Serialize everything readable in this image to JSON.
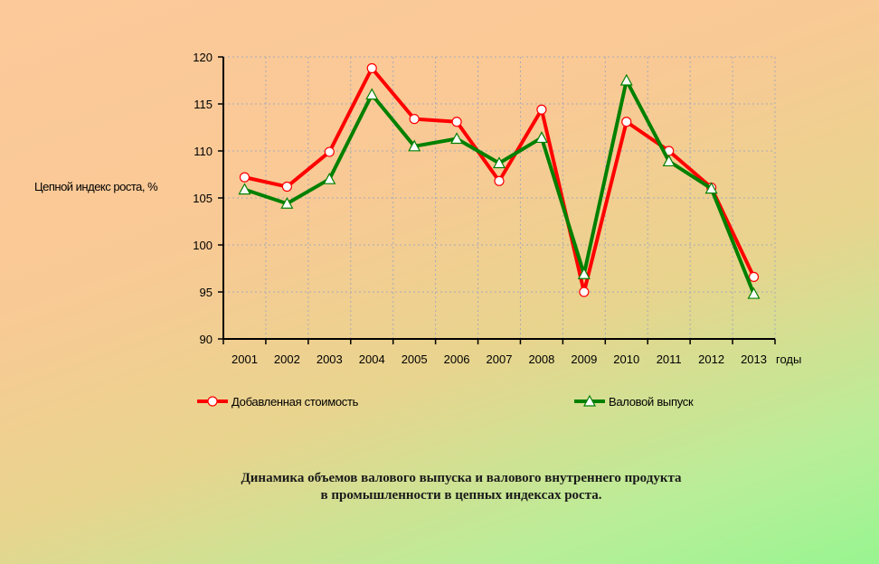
{
  "chart_data": {
    "type": "line",
    "title": "Динамика объемов валового выпуска и валового внутреннего продукта в промышленности в цепных индексах роста.",
    "caption_lines": [
      "Динамика объемов валового выпуска и валового внутреннего продукта",
      "в промышленности в цепных индексах роста."
    ],
    "xlabel": "годы",
    "ylabel": "Цепной индекс роста, %",
    "categories": [
      "2001",
      "2002",
      "2003",
      "2004",
      "2005",
      "2006",
      "2007",
      "2008",
      "2009",
      "2010",
      "2011",
      "2012",
      "2013"
    ],
    "ylim": [
      90,
      120
    ],
    "yticks": [
      90,
      95,
      100,
      105,
      110,
      115,
      120
    ],
    "grid": true,
    "legend_position": "bottom",
    "series": [
      {
        "name": "Добавленная стоимость",
        "color": "#ff0000",
        "marker": "circle",
        "values": [
          107.2,
          106.2,
          109.9,
          118.8,
          113.4,
          113.1,
          106.8,
          114.4,
          95.0,
          113.1,
          110.0,
          106.1,
          96.6
        ]
      },
      {
        "name": "Валовой выпуск",
        "color": "#008000",
        "marker": "triangle",
        "values": [
          105.9,
          104.4,
          107.0,
          116.0,
          110.5,
          111.3,
          108.7,
          111.4,
          96.9,
          117.5,
          108.9,
          106.0,
          94.8
        ]
      }
    ]
  }
}
